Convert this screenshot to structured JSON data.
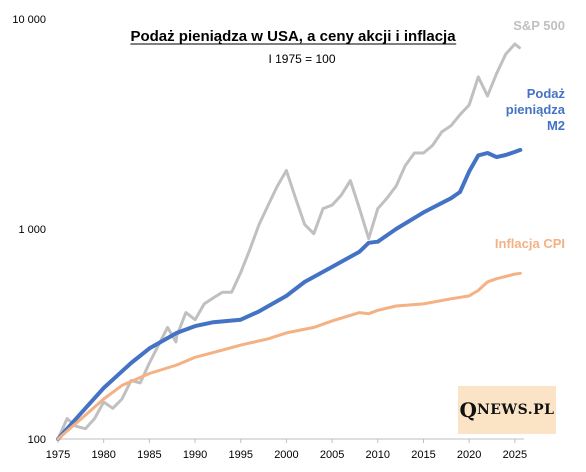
{
  "chart_data": {
    "type": "line",
    "title": "Podaż pieniądza w USA, a ceny akcji i inflacja",
    "subtitle": "I 1975 = 100",
    "y_scale": "log",
    "ylim": [
      100,
      10000
    ],
    "y_ticks": [
      "100",
      "1 000",
      "10 000"
    ],
    "y_tick_values": [
      100,
      1000,
      10000
    ],
    "xlim": [
      1975,
      2026
    ],
    "x_ticks": [
      "1975",
      "1980",
      "1985",
      "1990",
      "1995",
      "2000",
      "2005",
      "2010",
      "2015",
      "2020",
      "2025"
    ],
    "x_tick_values": [
      1975,
      1980,
      1985,
      1990,
      1995,
      2000,
      2005,
      2010,
      2015,
      2020,
      2025
    ],
    "grid": false,
    "series": [
      {
        "name": "S&P 500",
        "color": "#c0c0c0",
        "points": [
          [
            1975,
            100
          ],
          [
            1976,
            125
          ],
          [
            1977,
            115
          ],
          [
            1978,
            112
          ],
          [
            1979,
            125
          ],
          [
            1980,
            150
          ],
          [
            1981,
            140
          ],
          [
            1982,
            155
          ],
          [
            1983,
            190
          ],
          [
            1984,
            185
          ],
          [
            1985,
            230
          ],
          [
            1986,
            280
          ],
          [
            1987,
            340
          ],
          [
            1987.9,
            290
          ],
          [
            1988,
            310
          ],
          [
            1989,
            400
          ],
          [
            1990,
            370
          ],
          [
            1991,
            440
          ],
          [
            1992,
            470
          ],
          [
            1993,
            500
          ],
          [
            1994,
            500
          ],
          [
            1995,
            620
          ],
          [
            1996,
            800
          ],
          [
            1997,
            1050
          ],
          [
            1998,
            1300
          ],
          [
            1999,
            1600
          ],
          [
            2000,
            1900
          ],
          [
            2001,
            1400
          ],
          [
            2002,
            1050
          ],
          [
            2003,
            950
          ],
          [
            2004,
            1250
          ],
          [
            2005,
            1300
          ],
          [
            2006,
            1450
          ],
          [
            2007,
            1700
          ],
          [
            2008,
            1250
          ],
          [
            2009,
            900
          ],
          [
            2010,
            1250
          ],
          [
            2011,
            1400
          ],
          [
            2012,
            1600
          ],
          [
            2013,
            2000
          ],
          [
            2014,
            2300
          ],
          [
            2015,
            2300
          ],
          [
            2016,
            2500
          ],
          [
            2017,
            2900
          ],
          [
            2018,
            3100
          ],
          [
            2019,
            3500
          ],
          [
            2020,
            3900
          ],
          [
            2021,
            5300
          ],
          [
            2022,
            4300
          ],
          [
            2023,
            5500
          ],
          [
            2024,
            6800
          ],
          [
            2025,
            7600
          ],
          [
            2025.5,
            7300
          ]
        ]
      },
      {
        "name": "Podaż pieniądza M2",
        "color": "#4472c4",
        "points": [
          [
            1975,
            100
          ],
          [
            1978,
            140
          ],
          [
            1980,
            175
          ],
          [
            1983,
            230
          ],
          [
            1985,
            270
          ],
          [
            1988,
            320
          ],
          [
            1990,
            345
          ],
          [
            1992,
            360
          ],
          [
            1995,
            370
          ],
          [
            1997,
            405
          ],
          [
            2000,
            480
          ],
          [
            2002,
            560
          ],
          [
            2005,
            660
          ],
          [
            2008,
            780
          ],
          [
            2009,
            860
          ],
          [
            2010,
            870
          ],
          [
            2012,
            1000
          ],
          [
            2015,
            1200
          ],
          [
            2018,
            1400
          ],
          [
            2019,
            1500
          ],
          [
            2020,
            1880
          ],
          [
            2021,
            2240
          ],
          [
            2022,
            2300
          ],
          [
            2023,
            2200
          ],
          [
            2024,
            2250
          ],
          [
            2025,
            2330
          ],
          [
            2025.6,
            2380
          ]
        ]
      },
      {
        "name": "Inflacja CPI",
        "color": "#f4b183",
        "points": [
          [
            1975,
            100
          ],
          [
            1978,
            130
          ],
          [
            1980,
            155
          ],
          [
            1982,
            180
          ],
          [
            1985,
            205
          ],
          [
            1988,
            225
          ],
          [
            1990,
            245
          ],
          [
            1993,
            265
          ],
          [
            1995,
            280
          ],
          [
            1998,
            300
          ],
          [
            2000,
            320
          ],
          [
            2003,
            340
          ],
          [
            2005,
            365
          ],
          [
            2008,
            400
          ],
          [
            2009,
            395
          ],
          [
            2010,
            410
          ],
          [
            2012,
            430
          ],
          [
            2015,
            440
          ],
          [
            2018,
            465
          ],
          [
            2020,
            480
          ],
          [
            2021,
            510
          ],
          [
            2022,
            560
          ],
          [
            2023,
            580
          ],
          [
            2024,
            595
          ],
          [
            2025,
            610
          ],
          [
            2025.6,
            615
          ]
        ]
      }
    ],
    "series_labels": [
      {
        "series": 0,
        "lines": [
          "S&P 500"
        ]
      },
      {
        "series": 1,
        "lines": [
          "Podaż",
          "pieniądza",
          "M2"
        ]
      },
      {
        "series": 2,
        "lines": [
          "Inflacja CPI"
        ]
      }
    ]
  },
  "logo": {
    "big": "Q",
    "small": "NEWS.PL"
  }
}
